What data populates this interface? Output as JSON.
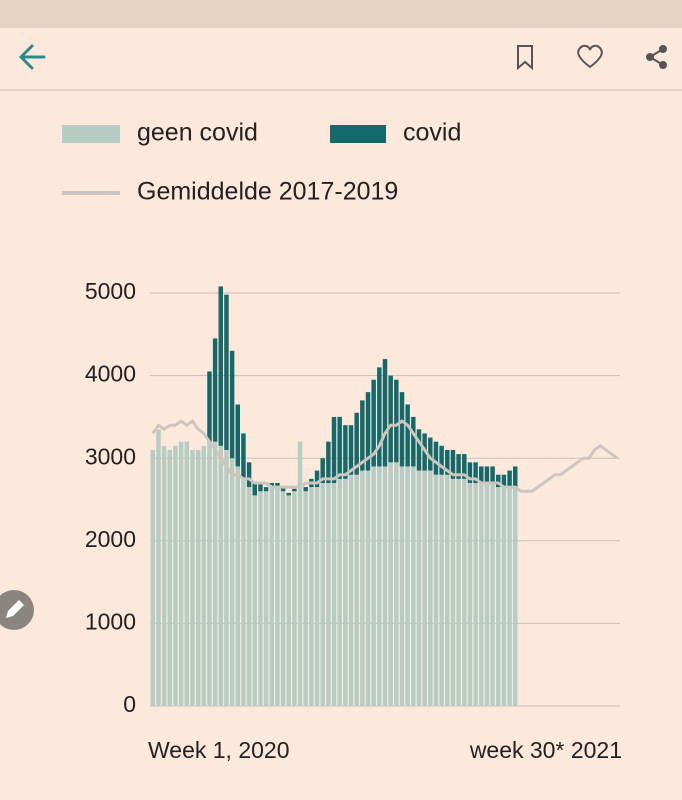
{
  "chart_data": {
    "type": "bar",
    "stacked": true,
    "categories": [
      "Week 1, 2020",
      null,
      null,
      null,
      null,
      null,
      null,
      null,
      null,
      null,
      null,
      null,
      null,
      null,
      null,
      null,
      null,
      null,
      null,
      null,
      null,
      null,
      null,
      null,
      null,
      null,
      null,
      null,
      null,
      null,
      null,
      null,
      null,
      null,
      null,
      null,
      null,
      null,
      null,
      null,
      null,
      null,
      null,
      null,
      null,
      null,
      null,
      null,
      null,
      null,
      null,
      null,
      null,
      null,
      null,
      null,
      null,
      null,
      null,
      null,
      null,
      null,
      null,
      null,
      null,
      null,
      null,
      null,
      null,
      null,
      null,
      null,
      null,
      null,
      null,
      null,
      null,
      null,
      null,
      null,
      null,
      null,
      "week 30* 2021"
    ],
    "series": [
      {
        "name": "geen covid",
        "color": "#b6cdc6",
        "values": [
          3100,
          3350,
          3150,
          3100,
          3150,
          3200,
          3200,
          3100,
          3100,
          3150,
          3200,
          3200,
          3150,
          3100,
          3000,
          2900,
          2750,
          2650,
          2550,
          2600,
          2600,
          2650,
          2650,
          2600,
          2550,
          2600,
          3200,
          2600,
          2650,
          2650,
          2700,
          2700,
          2700,
          2750,
          2750,
          2800,
          2800,
          2850,
          2850,
          2900,
          2900,
          2900,
          2950,
          2950,
          2900,
          2900,
          2900,
          2850,
          2850,
          2850,
          2800,
          2800,
          2800,
          2750,
          2750,
          2750,
          2700,
          2700,
          2700,
          2700,
          2700,
          2650,
          2650,
          2650,
          2650,
          null,
          null,
          null,
          null,
          null,
          null,
          null,
          null,
          null,
          null,
          null,
          null,
          null,
          null,
          null,
          null,
          null,
          null
        ]
      },
      {
        "name": "covid",
        "color": "#15696a",
        "values": [
          0,
          0,
          0,
          0,
          0,
          0,
          0,
          0,
          0,
          0,
          850,
          1250,
          1930,
          1880,
          1300,
          750,
          550,
          300,
          150,
          100,
          50,
          50,
          50,
          50,
          30,
          30,
          0,
          50,
          100,
          200,
          300,
          500,
          800,
          750,
          650,
          600,
          750,
          850,
          950,
          1050,
          1200,
          1300,
          1050,
          1000,
          900,
          750,
          600,
          500,
          450,
          400,
          400,
          350,
          300,
          350,
          300,
          300,
          250,
          250,
          200,
          200,
          200,
          150,
          150,
          200,
          250,
          null,
          null,
          null,
          null,
          null,
          null,
          null,
          null,
          null,
          null,
          null,
          null,
          null,
          null,
          null,
          null,
          null,
          null
        ]
      },
      {
        "name": "Gemiddelde 2017-2019",
        "type": "line",
        "color": "#cdc6c0",
        "values": [
          3300,
          3400,
          3350,
          3400,
          3400,
          3450,
          3400,
          3450,
          3350,
          3300,
          3200,
          3100,
          3000,
          2900,
          2800,
          2800,
          2750,
          2750,
          2700,
          2700,
          2700,
          2650,
          2650,
          2650,
          2650,
          2650,
          2650,
          2700,
          2700,
          2700,
          2750,
          2750,
          2750,
          2800,
          2800,
          2850,
          2900,
          2950,
          3000,
          3050,
          3150,
          3300,
          3400,
          3400,
          3450,
          3400,
          3300,
          3200,
          3100,
          3000,
          2950,
          2900,
          2850,
          2800,
          2800,
          2800,
          2750,
          2750,
          2700,
          2700,
          2700,
          2700,
          2650,
          2650,
          2650,
          2600,
          2600,
          2600,
          2650,
          2700,
          2750,
          2800,
          2800,
          2850,
          2900,
          2950,
          3000,
          3000,
          3100,
          3150,
          3100,
          3050,
          3000
        ]
      }
    ],
    "ylim": [
      0,
      5000
    ],
    "yticks": [
      0,
      1000,
      2000,
      3000,
      4000,
      5000
    ],
    "grid": true
  }
}
